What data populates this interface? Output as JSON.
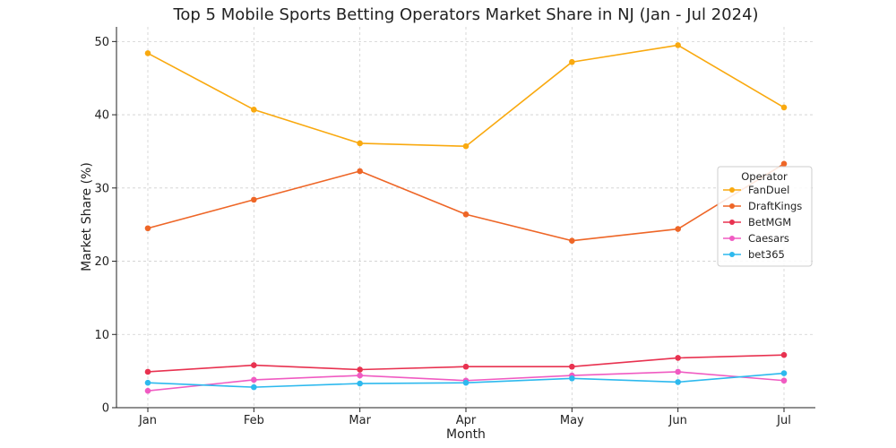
{
  "chart_data": {
    "type": "line",
    "title": "Top 5 Mobile Sports Betting Operators Market Share in NJ (Jan - Jul 2024)",
    "xlabel": "Month",
    "ylabel": "Market Share (%)",
    "categories": [
      "Jan",
      "Feb",
      "Mar",
      "Apr",
      "May",
      "Jun",
      "Jul"
    ],
    "ylim": [
      0,
      52
    ],
    "yticks": [
      0,
      10,
      20,
      30,
      40,
      50
    ],
    "grid": true,
    "legend": {
      "title": "Operator",
      "placement": "center-right"
    },
    "series": [
      {
        "name": "FanDuel",
        "color": "#F9A90F",
        "values": [
          48.4,
          40.7,
          36.1,
          35.7,
          47.2,
          49.5,
          41.0
        ]
      },
      {
        "name": "DraftKings",
        "color": "#EE6627",
        "values": [
          24.5,
          28.4,
          32.3,
          26.4,
          22.8,
          24.4,
          33.3
        ]
      },
      {
        "name": "BetMGM",
        "color": "#E83250",
        "values": [
          4.9,
          5.8,
          5.2,
          5.6,
          5.6,
          6.8,
          7.2
        ]
      },
      {
        "name": "Caesars",
        "color": "#F05BC2",
        "values": [
          2.3,
          3.8,
          4.4,
          3.7,
          4.4,
          4.9,
          3.7
        ]
      },
      {
        "name": "bet365",
        "color": "#2DB9EE",
        "values": [
          3.4,
          2.8,
          3.3,
          3.4,
          4.0,
          3.5,
          4.7
        ]
      }
    ]
  }
}
